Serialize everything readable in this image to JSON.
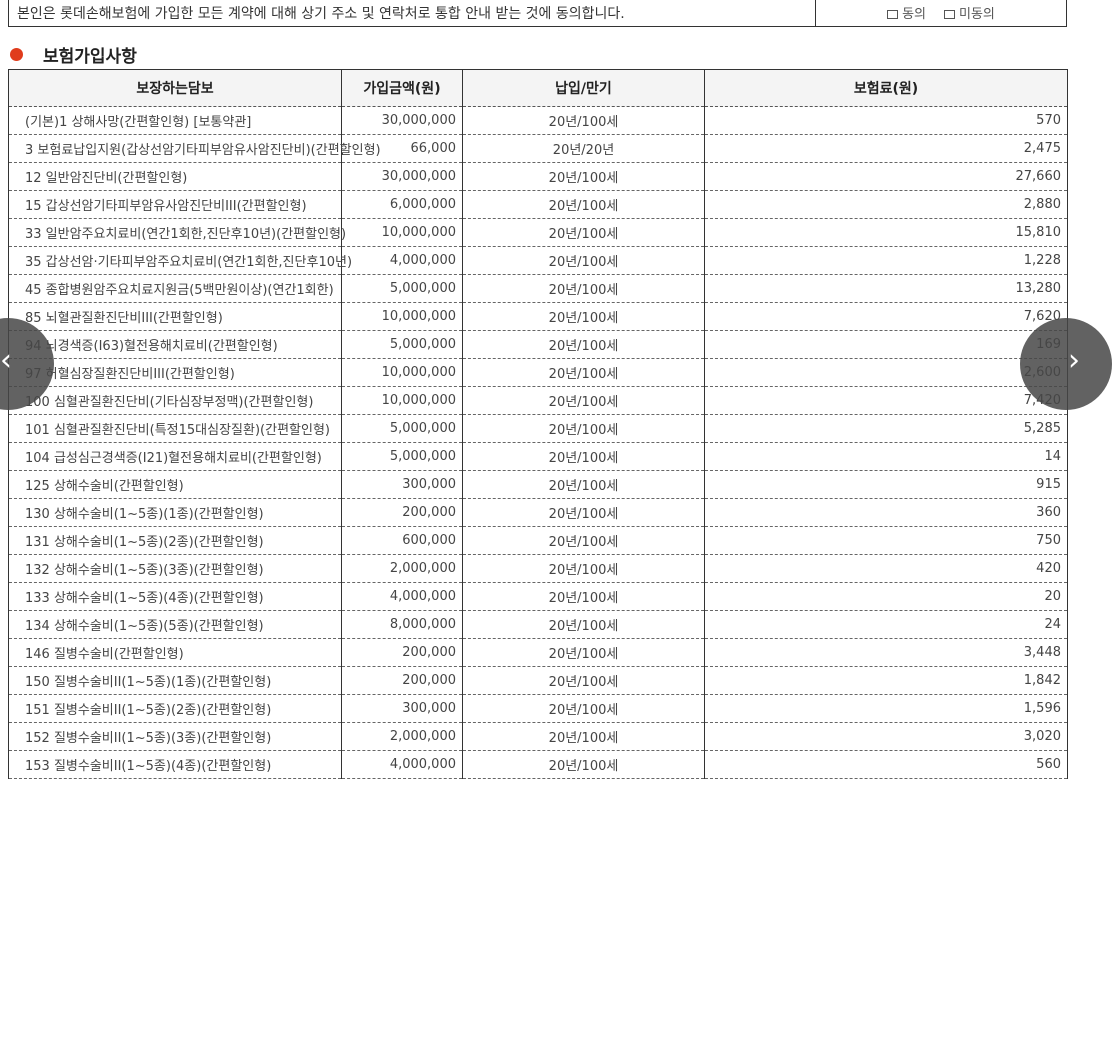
{
  "consent": {
    "text": "본인은 롯데손해보험에 가입한 모든 계약에 대해 상기 주소 및 연락처로 통합 안내 받는 것에 동의합니다.",
    "agree": "동의",
    "disagree": "미동의"
  },
  "section": {
    "title": "보험가입사항",
    "accent": "#e03c1c"
  },
  "table": {
    "headers": [
      "보장하는담보",
      "가입금액(원)",
      "납입/만기",
      "보험료(원)"
    ],
    "rows": [
      [
        "(기본)1 상해사망(간편할인형) [보통약관]",
        "30,000,000",
        "20년/100세",
        "570"
      ],
      [
        "3 보험료납입지원(갑상선암기타피부암유사암진단비)(간편할인형)",
        "66,000",
        "20년/20년",
        "2,475"
      ],
      [
        "12 일반암진단비(간편할인형)",
        "30,000,000",
        "20년/100세",
        "27,660"
      ],
      [
        "15 갑상선암기타피부암유사암진단비III(간편할인형)",
        "6,000,000",
        "20년/100세",
        "2,880"
      ],
      [
        "33 일반암주요치료비(연간1회한,진단후10년)(간편할인형)",
        "10,000,000",
        "20년/100세",
        "15,810"
      ],
      [
        "35 갑상선암·기타피부암주요치료비(연간1회한,진단후10년)",
        "4,000,000",
        "20년/100세",
        "1,228"
      ],
      [
        "45 종합병원암주요치료지원금(5백만원이상)(연간1회한)",
        "5,000,000",
        "20년/100세",
        "13,280"
      ],
      [
        "85 뇌혈관질환진단비III(간편할인형)",
        "10,000,000",
        "20년/100세",
        "7,620"
      ],
      [
        "94 뇌경색증(I63)혈전용해치료비(간편할인형)",
        "5,000,000",
        "20년/100세",
        "169"
      ],
      [
        "97 허혈심장질환진단비III(간편할인형)",
        "10,000,000",
        "20년/100세",
        "2,600"
      ],
      [
        "100 심혈관질환진단비(기타심장부정맥)(간편할인형)",
        "10,000,000",
        "20년/100세",
        "7,420"
      ],
      [
        "101 심혈관질환진단비(특정15대심장질환)(간편할인형)",
        "5,000,000",
        "20년/100세",
        "5,285"
      ],
      [
        "104 급성심근경색증(I21)혈전용해치료비(간편할인형)",
        "5,000,000",
        "20년/100세",
        "14"
      ],
      [
        "125 상해수술비(간편할인형)",
        "300,000",
        "20년/100세",
        "915"
      ],
      [
        "130 상해수술비(1~5종)(1종)(간편할인형)",
        "200,000",
        "20년/100세",
        "360"
      ],
      [
        "131 상해수술비(1~5종)(2종)(간편할인형)",
        "600,000",
        "20년/100세",
        "750"
      ],
      [
        "132 상해수술비(1~5종)(3종)(간편할인형)",
        "2,000,000",
        "20년/100세",
        "420"
      ],
      [
        "133 상해수술비(1~5종)(4종)(간편할인형)",
        "4,000,000",
        "20년/100세",
        "20"
      ],
      [
        "134 상해수술비(1~5종)(5종)(간편할인형)",
        "8,000,000",
        "20년/100세",
        "24"
      ],
      [
        "146 질병수술비(간편할인형)",
        "200,000",
        "20년/100세",
        "3,448"
      ],
      [
        "150 질병수술비II(1~5종)(1종)(간편할인형)",
        "200,000",
        "20년/100세",
        "1,842"
      ],
      [
        "151 질병수술비II(1~5종)(2종)(간편할인형)",
        "300,000",
        "20년/100세",
        "1,596"
      ],
      [
        "152 질병수술비II(1~5종)(3종)(간편할인형)",
        "2,000,000",
        "20년/100세",
        "3,020"
      ],
      [
        "153 질병수술비II(1~5종)(4종)(간편할인형)",
        "4,000,000",
        "20년/100세",
        "560"
      ]
    ]
  },
  "nav": {
    "prev_icon": "chevron-left-icon",
    "next_icon": "chevron-right-icon",
    "prev_glyph": "‹",
    "next_glyph": "›"
  }
}
